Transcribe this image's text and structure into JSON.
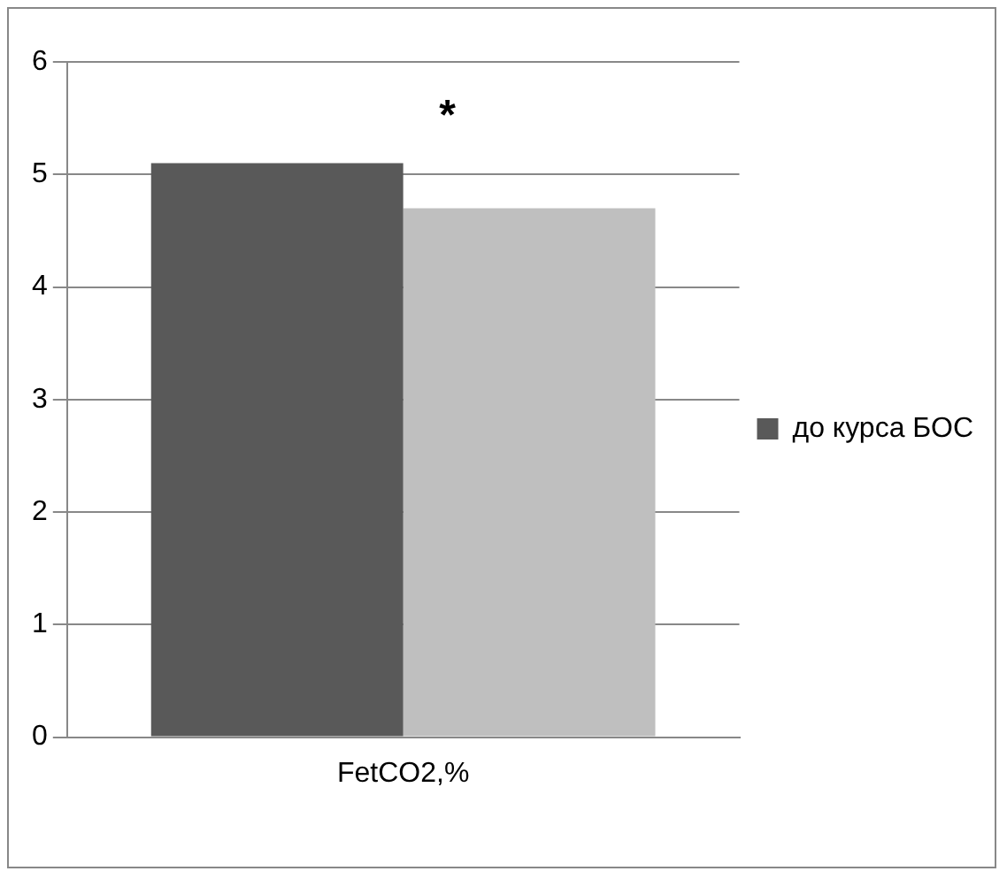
{
  "chart_data": {
    "type": "bar",
    "categories": [
      "FetCO2,%"
    ],
    "series": [
      {
        "name": "до курса БОС",
        "color": "#595959",
        "values": [
          5.1
        ]
      },
      {
        "color": "#bfbfbf",
        "values": [
          4.7
        ]
      }
    ],
    "ylim": [
      0,
      6
    ],
    "yticks": [
      0,
      1,
      2,
      3,
      4,
      5,
      6
    ],
    "grid": "y",
    "legend": "right",
    "annotations": [
      "*"
    ]
  }
}
